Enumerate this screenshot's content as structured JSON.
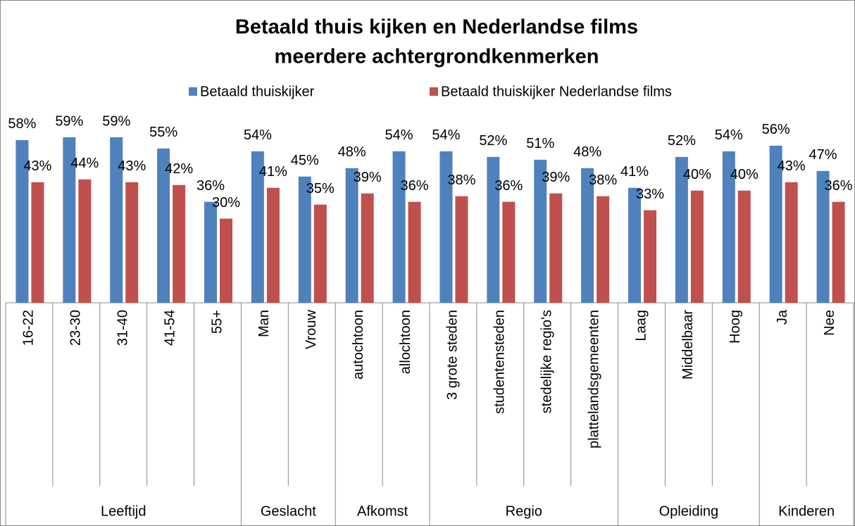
{
  "chart_data": {
    "type": "bar",
    "title": [
      "Betaald thuis kijken en Nederlandse films",
      "meerdere achtergrondkenmerken"
    ],
    "groups": [
      {
        "name": "Leeftijd",
        "categories": [
          "16-22",
          "23-30",
          "31-40",
          "41-54",
          "55+"
        ]
      },
      {
        "name": "Geslacht",
        "categories": [
          "Man",
          "Vrouw"
        ]
      },
      {
        "name": "Afkomst",
        "categories": [
          "autochtoon",
          "allochtoon"
        ]
      },
      {
        "name": "Regio",
        "categories": [
          "3 grote steden",
          "studentensteden",
          "stedelijke regio's",
          "plattelandsgemeenten"
        ]
      },
      {
        "name": "Opleiding",
        "categories": [
          "Laag",
          "Middelbaar",
          "Hoog"
        ]
      },
      {
        "name": "Kinderen",
        "categories": [
          "Ja",
          "Nee"
        ]
      }
    ],
    "series": [
      {
        "name": "Betaald thuiskijker",
        "color": "#4f81bd",
        "values": [
          58,
          59,
          59,
          55,
          36,
          54,
          45,
          48,
          54,
          54,
          52,
          51,
          48,
          41,
          52,
          54,
          56,
          47
        ],
        "value_labels": [
          "58%",
          "59%",
          "59%",
          "55%",
          "36%",
          "54%",
          "45%",
          "48%",
          "54%",
          "54%",
          "52%",
          "51%",
          "48%",
          "41%",
          "52%",
          "54%",
          "56%",
          "47%"
        ]
      },
      {
        "name": "Betaald thuiskijker Nederlandse films",
        "color": "#c0504d",
        "values": [
          43,
          44,
          43,
          42,
          30,
          41,
          35,
          39,
          36,
          38,
          36,
          39,
          38,
          33,
          40,
          40,
          43,
          36
        ],
        "value_labels": [
          "43%",
          "44%",
          "43%",
          "42%",
          "30%",
          "41%",
          "35%",
          "39%",
          "36%",
          "38%",
          "36%",
          "39%",
          "38%",
          "33%",
          "40%",
          "40%",
          "43%",
          "36%"
        ]
      }
    ],
    "ylim": [
      0,
      60
    ],
    "legend": "top"
  }
}
